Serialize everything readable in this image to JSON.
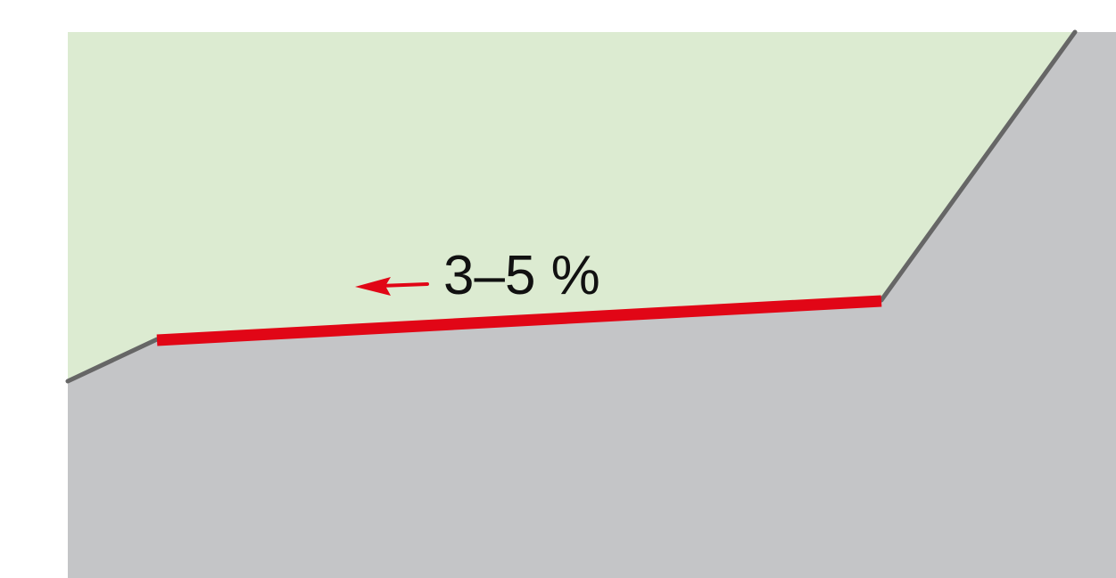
{
  "diagram": {
    "slope_label": "3–5 %",
    "slope_direction": "left",
    "colors": {
      "sky": "#dcebd1",
      "ground": "#c4c5c7",
      "ground_edge": "#666666",
      "slope_surface": "#e10616",
      "arrow": "#e10616",
      "text": "#111111"
    }
  }
}
